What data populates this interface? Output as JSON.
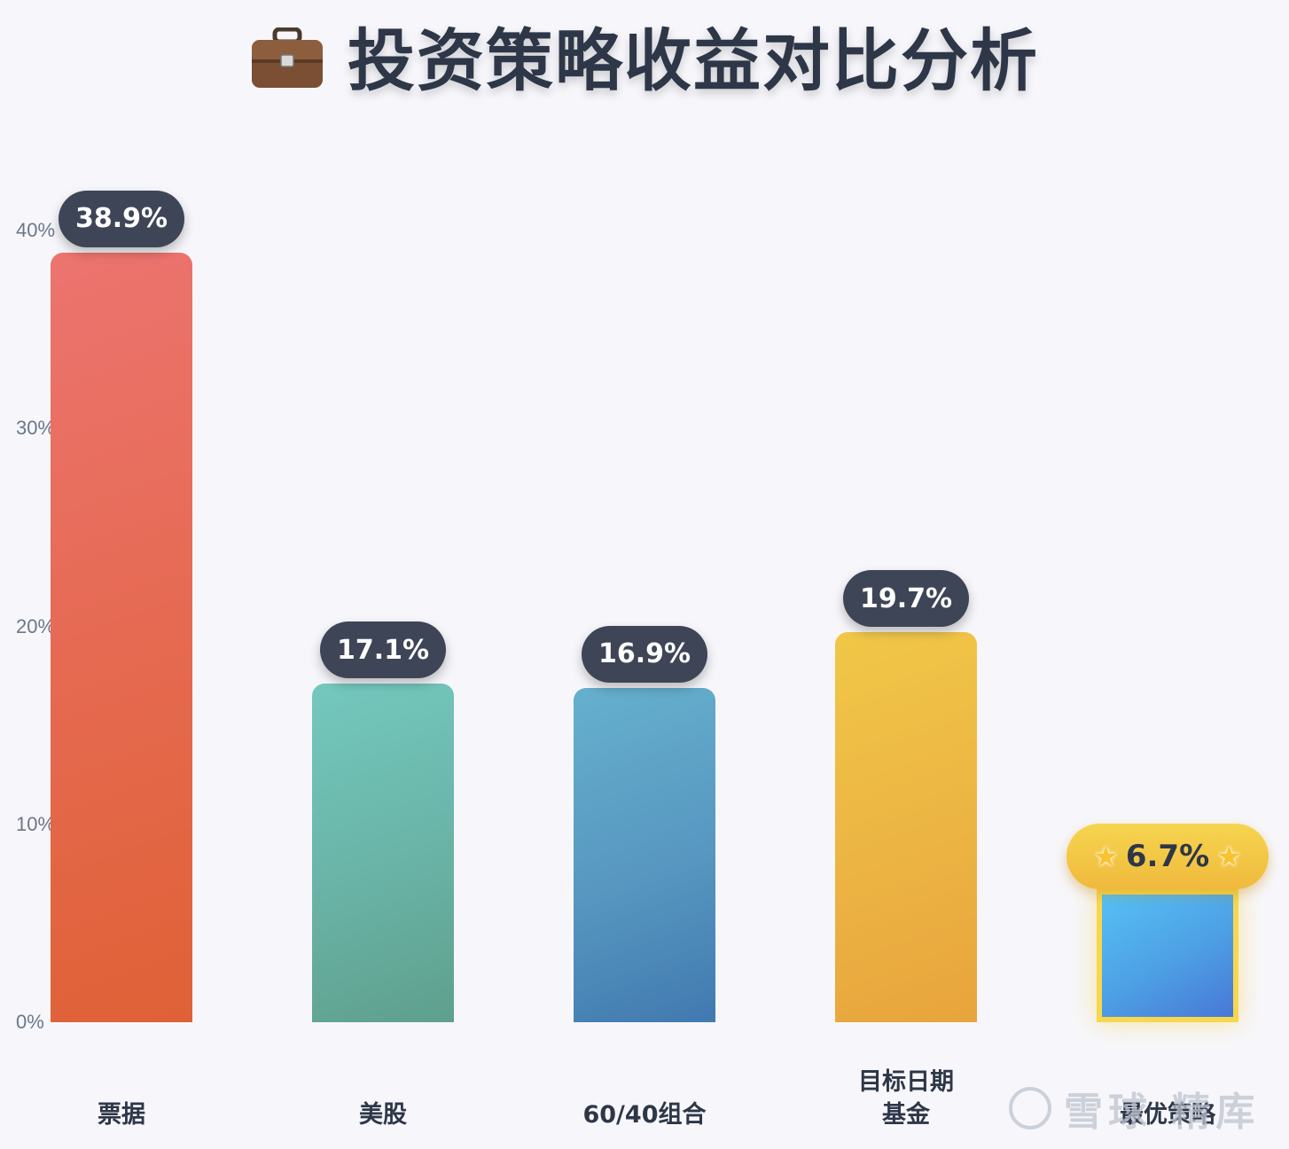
{
  "title": "投资策略收益对比分析",
  "chart_data": {
    "type": "bar",
    "title": "投资策略收益对比分析",
    "categories": [
      "票据",
      "美股",
      "60/40组合",
      "目标日期基金",
      "最优策略"
    ],
    "category_lines": [
      [
        "票据"
      ],
      [
        "美股"
      ],
      [
        "60/40组合"
      ],
      [
        "目标日期",
        "基金"
      ],
      [
        "最优策略"
      ]
    ],
    "values": [
      38.9,
      17.1,
      16.9,
      19.7,
      6.7
    ],
    "data_labels": [
      "38.9%",
      "17.1%",
      "16.9%",
      "19.7%",
      "6.7%"
    ],
    "highlight_index": 4,
    "ylim": [
      0,
      40
    ],
    "yticks": [
      "0%",
      "10%",
      "20%",
      "30%",
      "40%"
    ],
    "ytick_values": [
      0,
      10,
      20,
      30,
      40
    ],
    "grid": false,
    "colors": [
      "#e66a52",
      "#69b3a6",
      "#5797c0",
      "#ecb443",
      "#4d9fe4"
    ]
  },
  "icons": {
    "title_icon": "briefcase-icon",
    "highlight_icon": "star-icon"
  },
  "watermark": "雪球 精库"
}
